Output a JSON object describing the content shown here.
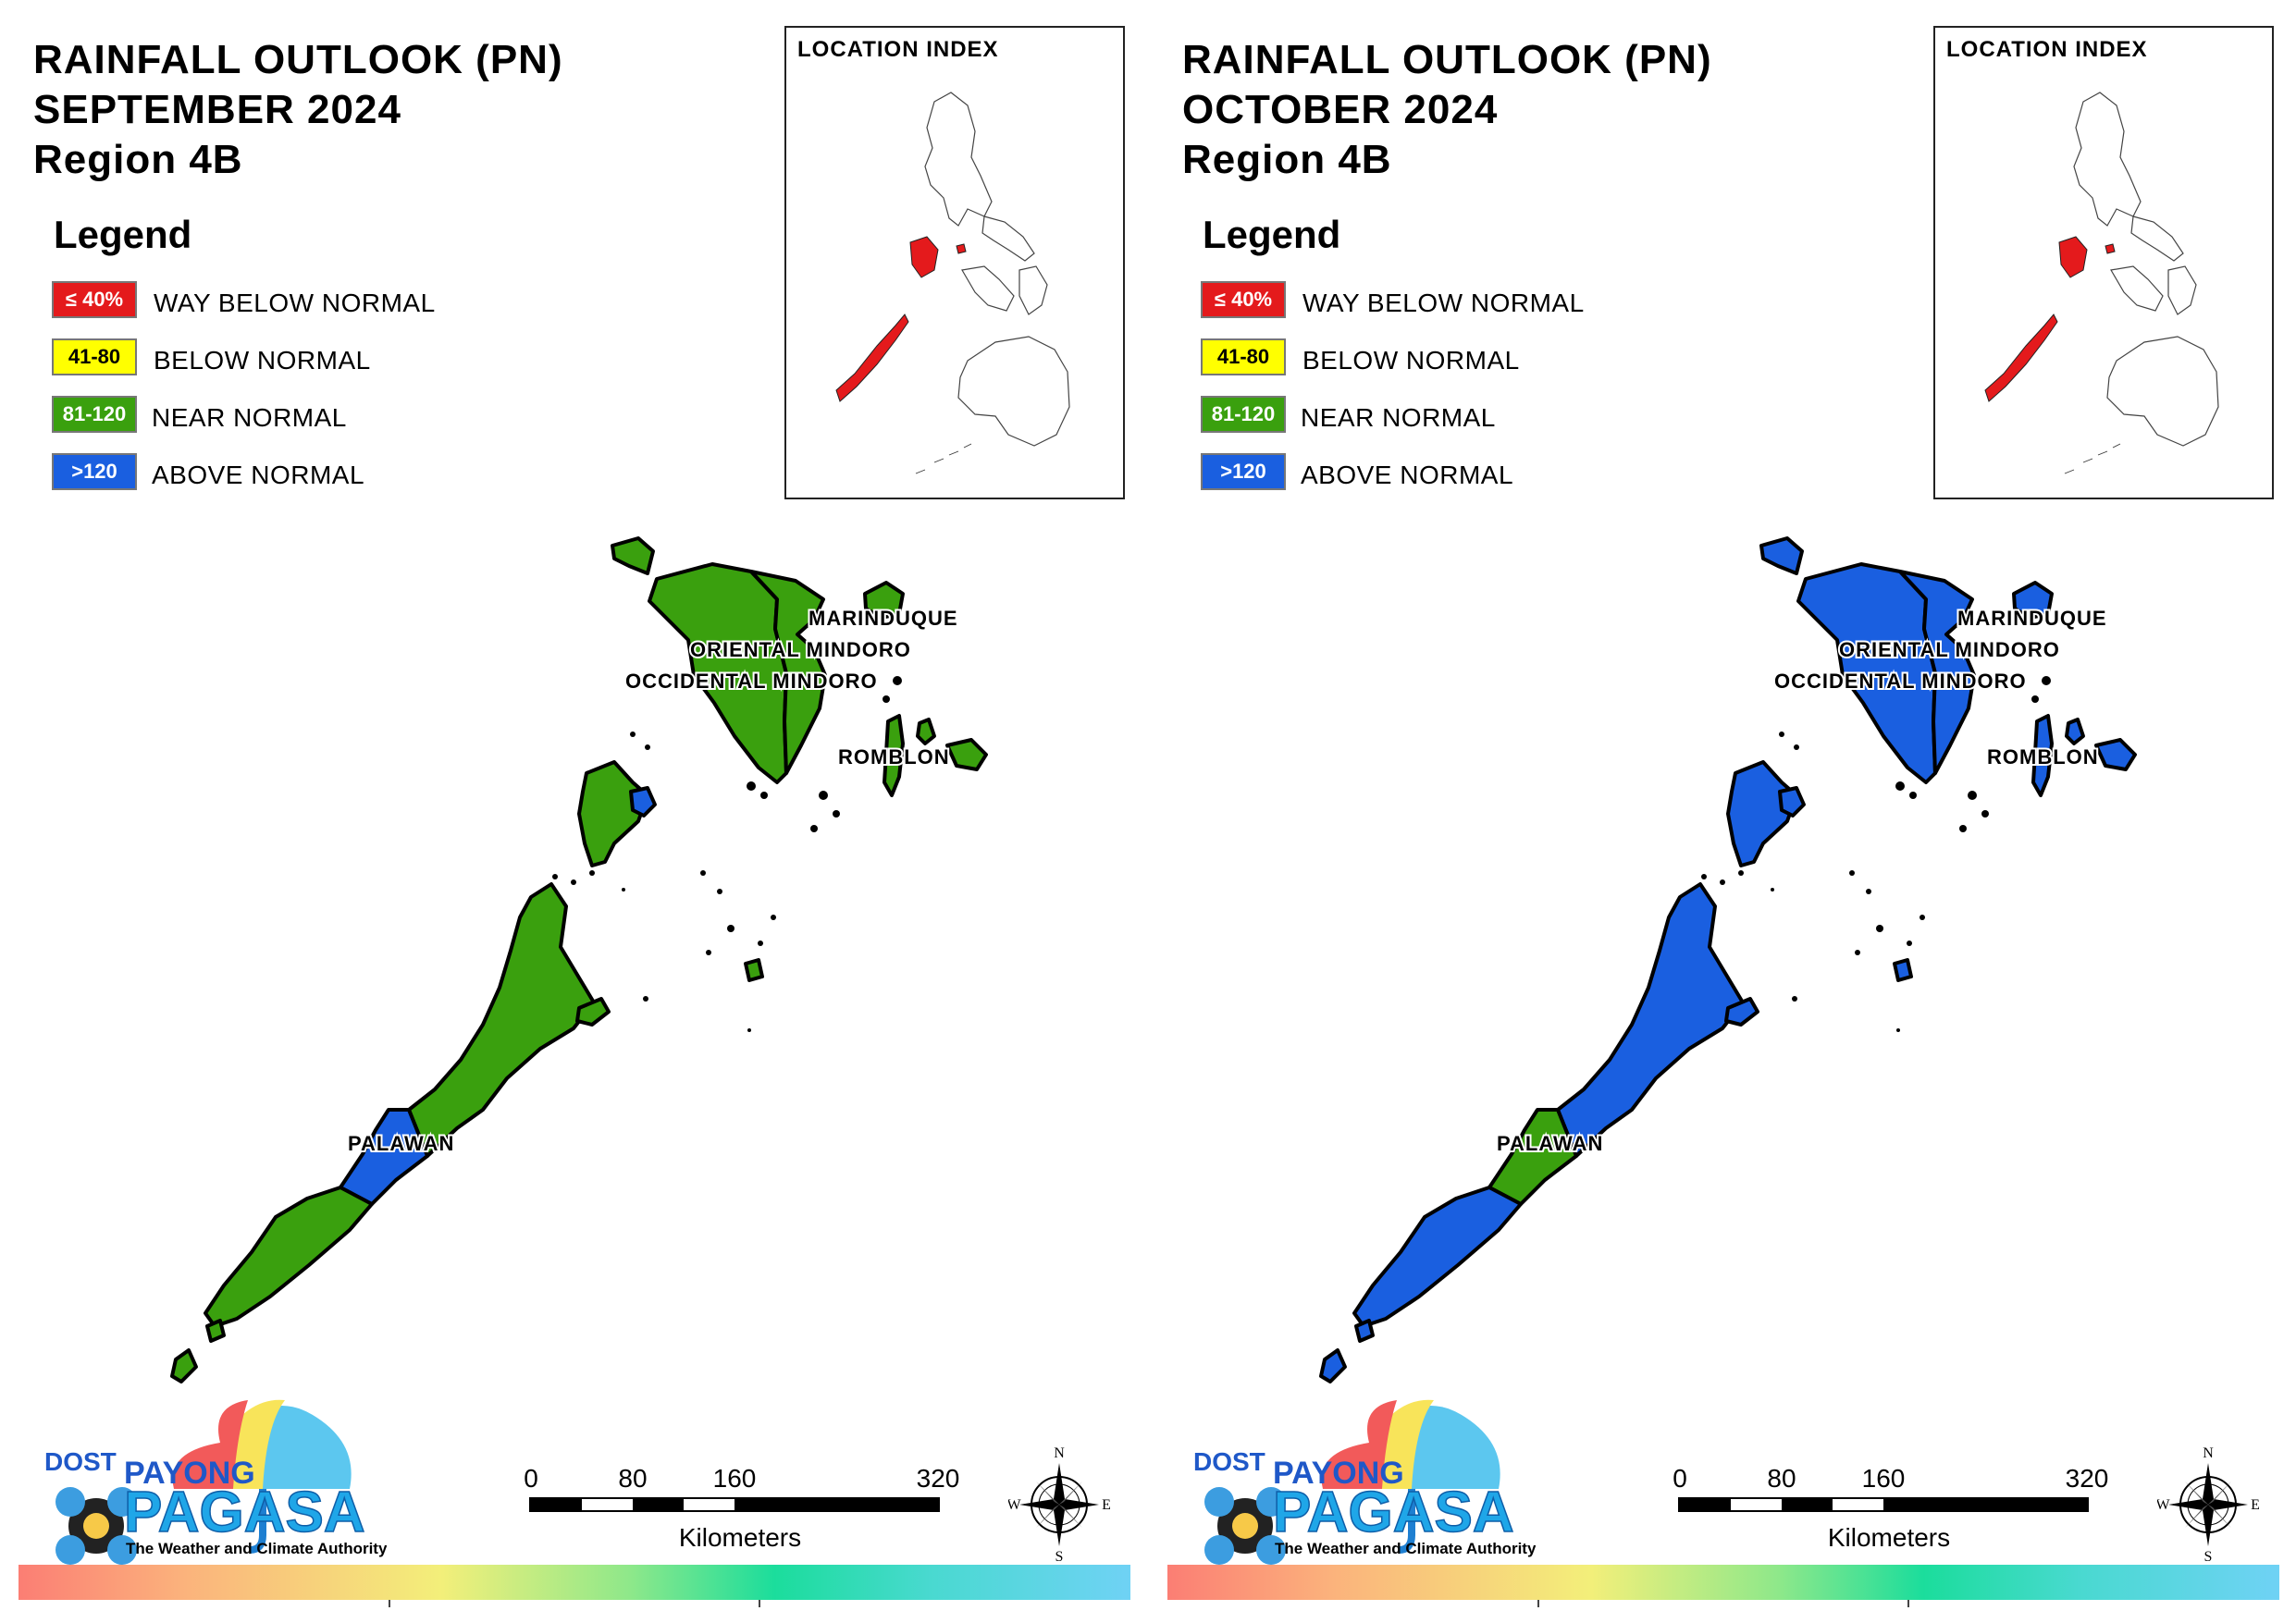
{
  "colors": {
    "way_below": "#e41a1c",
    "below": "#ffff00",
    "near": "#3aa00e",
    "above": "#1a5fe0"
  },
  "legend": {
    "title": "Legend",
    "items": [
      {
        "swatch": "≤ 40%",
        "label": "WAY BELOW NORMAL",
        "category": "way_below"
      },
      {
        "swatch": "41-80",
        "label": "BELOW NORMAL",
        "category": "below"
      },
      {
        "swatch": "81-120",
        "label": "NEAR NORMAL",
        "category": "near"
      },
      {
        "swatch": ">120",
        "label": "ABOVE NORMAL",
        "category": "above"
      }
    ]
  },
  "location_index": {
    "title": "LOCATION INDEX"
  },
  "map_labels": {
    "marinduque": "MARINDUQUE",
    "oriental_mindoro": "ORIENTAL MINDORO",
    "occidental_mindoro": "OCCIDENTAL MINDORO",
    "romblon": "ROMBLON",
    "palawan": "PALAWAN"
  },
  "scale": {
    "ticks": [
      "0",
      "80",
      "160",
      "320"
    ],
    "unit": "Kilometers"
  },
  "compass": {
    "n": "N",
    "s": "S",
    "e": "E",
    "w": "W"
  },
  "logo": {
    "dost": "DOST",
    "payong": "PAYONG",
    "pagasa": "PAGASA",
    "tagline": "The Weather and Climate Authority"
  },
  "panels": [
    {
      "title_line1": "RAINFALL OUTLOOK (PN)",
      "title_line2": "SEPTEMBER 2024",
      "title_line3": "Region 4B",
      "provinces": {
        "marinduque": "near",
        "occidental_mindoro": "near",
        "oriental_mindoro": "near",
        "romblon": "near",
        "palawan_north": "near",
        "palawan_north_tip": "above",
        "palawan_central": "near",
        "palawan_puerto": "above",
        "palawan_south": "near",
        "palawan_islands": "near"
      }
    },
    {
      "title_line1": "RAINFALL OUTLOOK (PN)",
      "title_line2": "OCTOBER 2024",
      "title_line3": "Region 4B",
      "provinces": {
        "marinduque": "above",
        "occidental_mindoro": "above",
        "oriental_mindoro": "above",
        "romblon": "above",
        "palawan_north": "above",
        "palawan_north_tip": "above",
        "palawan_central": "above",
        "palawan_puerto": "near",
        "palawan_south": "above",
        "palawan_islands": "above"
      }
    }
  ]
}
